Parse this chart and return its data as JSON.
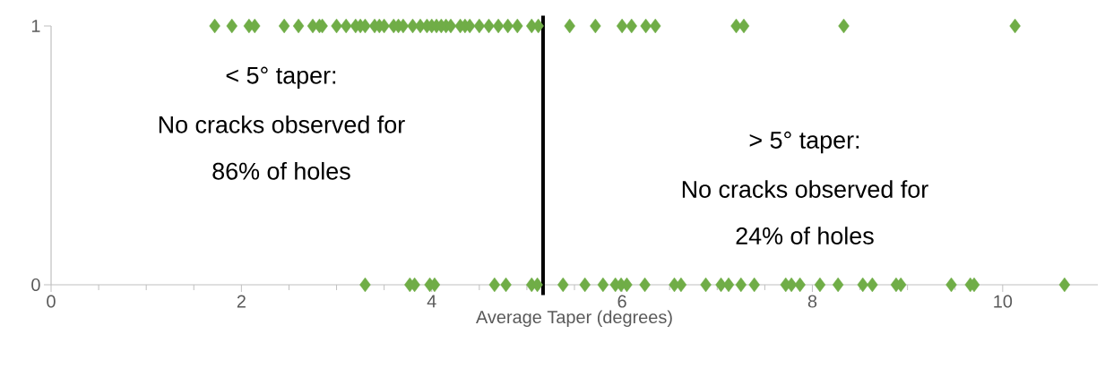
{
  "chart_data": {
    "type": "scatter",
    "xlabel": "Average Taper (degrees)",
    "annotations": [
      "< 5° taper:",
      "No cracks observed for",
      "86% of holes",
      "> 5° taper:",
      "No cracks observed for",
      "24% of holes"
    ],
    "series": [
      {
        "color": "#70ad47",
        "x": [
          1.72,
          1.9,
          2.08,
          2.14,
          2.45,
          2.6,
          2.75,
          2.82,
          2.85,
          3.0,
          3.1,
          3.2,
          3.25,
          3.3,
          3.4,
          3.45,
          3.5,
          3.6,
          3.65,
          3.7,
          3.8,
          3.88,
          3.95,
          4.0,
          4.05,
          4.1,
          4.15,
          4.2,
          4.3,
          4.35,
          4.4,
          4.5,
          4.6,
          4.7,
          4.8,
          4.9,
          5.05,
          5.12,
          5.45,
          5.72,
          6.0,
          6.1,
          6.25,
          6.35,
          7.2,
          7.28,
          8.33,
          10.13
        ],
        "values": [
          1,
          1,
          1,
          1,
          1,
          1,
          1,
          1,
          1,
          1,
          1,
          1,
          1,
          1,
          1,
          1,
          1,
          1,
          1,
          1,
          1,
          1,
          1,
          1,
          1,
          1,
          1,
          1,
          1,
          1,
          1,
          1,
          1,
          1,
          1,
          1,
          1,
          1,
          1,
          1,
          1,
          1,
          1,
          1,
          1,
          1,
          1,
          1
        ]
      },
      {
        "color": "#70ad47",
        "x": [
          3.3,
          3.77,
          3.82,
          3.98,
          4.03,
          4.66,
          4.78,
          5.05,
          5.11,
          5.38,
          5.61,
          5.8,
          5.93,
          5.99,
          6.05,
          6.24,
          6.55,
          6.62,
          6.88,
          7.04,
          7.12,
          7.25,
          7.39,
          7.72,
          7.78,
          7.87,
          8.08,
          8.27,
          8.53,
          8.63,
          8.88,
          8.93,
          9.46,
          9.66,
          9.7,
          10.65
        ],
        "values": [
          0,
          0,
          0,
          0,
          0,
          0,
          0,
          0,
          0,
          0,
          0,
          0,
          0,
          0,
          0,
          0,
          0,
          0,
          0,
          0,
          0,
          0,
          0,
          0,
          0,
          0,
          0,
          0,
          0,
          0,
          0,
          0,
          0,
          0,
          0,
          0
        ]
      }
    ],
    "marker": "diamond",
    "xlim": [
      0,
      11
    ],
    "xticks": [
      0,
      2,
      4,
      6,
      8,
      10
    ],
    "ylim": [
      0,
      1
    ],
    "yticks": [
      0,
      1
    ],
    "ref_lines": [
      {
        "axis": "x",
        "value": 5.17,
        "color": "#000000"
      }
    ]
  }
}
